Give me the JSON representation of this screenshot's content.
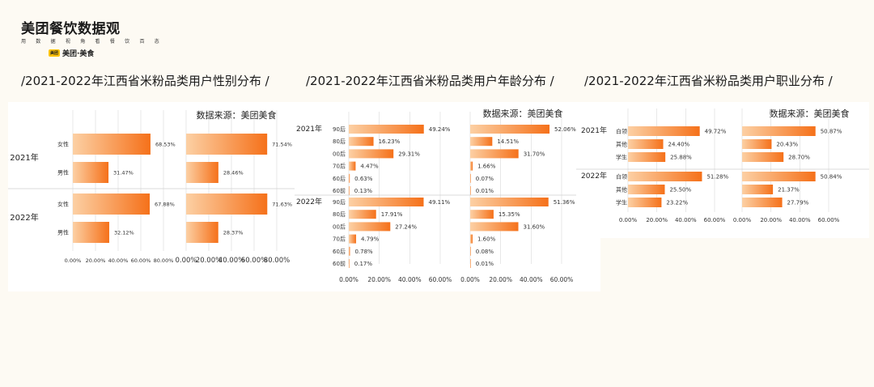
{
  "brand": {
    "title": "美团餐饮数据观",
    "subtitle": "用 数 据 视 角 看 餐 饮 百 态",
    "badge": "美团",
    "sub_logo": "美团·美食"
  },
  "headings": [
    "/2021-2022年江西省米粉品类用户性别分布  /",
    "/2021-2022年江西省米粉品类用户年龄分布  /",
    "/2021-2022年江西省米粉品类用户职业分布  /"
  ],
  "colors": {
    "bar_start": "#fcd0a4",
    "bar_end": "#f5711a",
    "grid": "#d8d8d8"
  },
  "chart_data": [
    {
      "type": "bar",
      "orientation": "horizontal",
      "source": "数据来源：美团美食",
      "groups": [
        "2021年",
        "2022年"
      ],
      "categories": [
        "女性",
        "男性"
      ],
      "left": {
        "values": [
          [
            68.53,
            31.47
          ],
          [
            67.88,
            32.12
          ]
        ],
        "labels": [
          [
            "68.53%",
            "31.47%"
          ],
          [
            "67.88%",
            "32.12%"
          ]
        ],
        "xticks": [
          "0.00%",
          "20.00%",
          "40.00%",
          "60.00%",
          "80.00%"
        ],
        "xlim": [
          0,
          80
        ]
      },
      "right": {
        "values": [
          [
            71.54,
            28.46
          ],
          [
            71.63,
            28.37
          ]
        ],
        "labels": [
          [
            "71.54%",
            "28.46%"
          ],
          [
            "71.63%",
            "28.37%"
          ]
        ],
        "xticks": [
          "0.00%",
          "20.00%",
          "40.00%",
          "60.00%",
          "80.00%"
        ],
        "xlim": [
          0,
          80
        ]
      }
    },
    {
      "type": "bar",
      "orientation": "horizontal",
      "source": "数据来源：美团美食",
      "groups": [
        "2021年",
        "2022年"
      ],
      "categories": [
        "90后",
        "80后",
        "00后",
        "70后",
        "60后",
        "60前"
      ],
      "left": {
        "values": [
          [
            49.24,
            16.23,
            29.31,
            4.47,
            0.63,
            0.13
          ],
          [
            49.11,
            17.91,
            27.24,
            4.79,
            0.78,
            0.17
          ]
        ],
        "labels": [
          [
            "49.24%",
            "16.23%",
            "29.31%",
            "4.47%",
            "0.63%",
            "0.13%"
          ],
          [
            "49.11%",
            "17.91%",
            "27.24%",
            "4.79%",
            "0.78%",
            "0.17%"
          ]
        ],
        "xticks": [
          "0.00%",
          "20.00%",
          "40.00%",
          "60.00%"
        ],
        "xlim": [
          0,
          60
        ]
      },
      "right": {
        "values": [
          [
            52.06,
            14.51,
            31.7,
            1.66,
            0.07,
            0.01
          ],
          [
            51.36,
            15.35,
            31.6,
            1.6,
            0.08,
            0.01
          ]
        ],
        "labels": [
          [
            "52.06%",
            "14.51%",
            "31.70%",
            "1.66%",
            "0.07%",
            "0.01%"
          ],
          [
            "51.36%",
            "15.35%",
            "31.60%",
            "1.60%",
            "0.08%",
            "0.01%"
          ]
        ],
        "xticks": [
          "0.00%",
          "20.00%",
          "40.00%",
          "60.00%"
        ],
        "xlim": [
          0,
          60
        ]
      }
    },
    {
      "type": "bar",
      "orientation": "horizontal",
      "source": "数据来源：美团美食",
      "groups": [
        "2021年",
        "2022年"
      ],
      "categories": [
        "白领",
        "其他",
        "学生"
      ],
      "left": {
        "values": [
          [
            49.72,
            24.4,
            25.88
          ],
          [
            51.28,
            25.5,
            23.22
          ]
        ],
        "labels": [
          [
            "49.72%",
            "24.40%",
            "25.88%"
          ],
          [
            "51.28%",
            "25.50%",
            "23.22%"
          ]
        ],
        "xticks": [
          "0.00%",
          "20.00%",
          "40.00%",
          "60.00%"
        ],
        "xlim": [
          0,
          60
        ]
      },
      "right": {
        "values": [
          [
            50.87,
            20.43,
            28.7
          ],
          [
            50.84,
            21.37,
            27.79
          ]
        ],
        "labels": [
          [
            "50.87%",
            "20.43%",
            "28.70%"
          ],
          [
            "50.84%",
            "21.37%",
            "27.79%"
          ]
        ],
        "xticks": [
          "0.00%",
          "20.00%",
          "40.00%",
          "60.00%"
        ],
        "xlim": [
          0,
          60
        ]
      }
    }
  ]
}
